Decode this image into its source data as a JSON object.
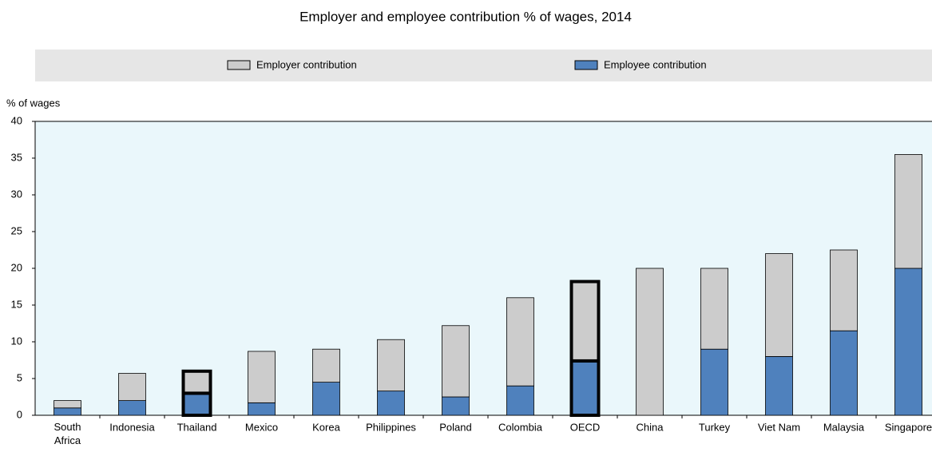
{
  "chart_data": {
    "type": "stacked_bar",
    "title": "Employer and employee contribution % of wages, 2014",
    "y_label": "% of wages",
    "categories": [
      "South\nAfrica",
      "Indonesia",
      "Thailand",
      "Mexico",
      "Korea",
      "Philippines",
      "Poland",
      "Colombia",
      "OECD",
      "China",
      "Turkey",
      "Viet Nam",
      "Malaysia",
      "Singapore"
    ],
    "highlight": [
      false,
      false,
      true,
      false,
      false,
      false,
      false,
      false,
      true,
      false,
      false,
      false,
      false,
      false
    ],
    "series": [
      {
        "name": "Employer contribution",
        "color": "#cccccc",
        "values": [
          1,
          3.7,
          3,
          7,
          4.5,
          7,
          9.7,
          12,
          10.8,
          20,
          11,
          14,
          11,
          15.5
        ]
      },
      {
        "name": "Employee contribution",
        "color": "#4f81bd",
        "values": [
          1,
          2,
          3,
          1.7,
          4.5,
          3.3,
          2.5,
          4,
          7.4,
          0,
          9,
          8,
          11.5,
          20
        ]
      }
    ],
    "ylim": [
      0,
      40
    ],
    "yticks": [
      0,
      5,
      10,
      15,
      20,
      25,
      30,
      35,
      40
    ],
    "grid": false
  }
}
